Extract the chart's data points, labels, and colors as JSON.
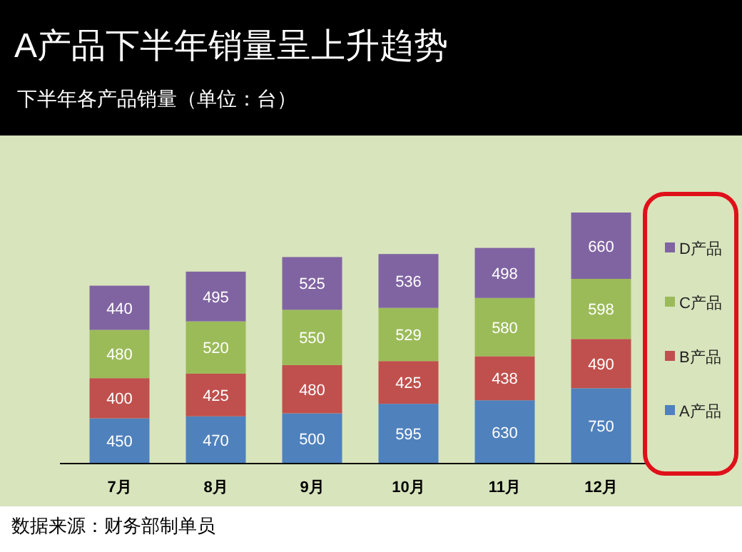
{
  "chart_data": {
    "type": "bar",
    "title": "A产品下半年销量呈上升趋势",
    "subtitle": "下半年各产品销量（单位：台）",
    "categories": [
      "7月",
      "8月",
      "9月",
      "10月",
      "11月",
      "12月"
    ],
    "stacked": true,
    "data_labels": true,
    "legend": "right",
    "series": [
      {
        "name": "A产品",
        "color": "#4f81bd",
        "values": [
          450,
          470,
          500,
          595,
          630,
          750
        ]
      },
      {
        "name": "B产品",
        "color": "#c0504d",
        "values": [
          400,
          425,
          480,
          425,
          438,
          490
        ]
      },
      {
        "name": "C产品",
        "color": "#9bbb59",
        "values": [
          480,
          520,
          550,
          529,
          580,
          598
        ]
      },
      {
        "name": "D产品",
        "color": "#8064a2",
        "values": [
          440,
          495,
          525,
          536,
          498,
          660
        ]
      }
    ],
    "annotations": [
      "数据来源：财务部制单员"
    ]
  }
}
